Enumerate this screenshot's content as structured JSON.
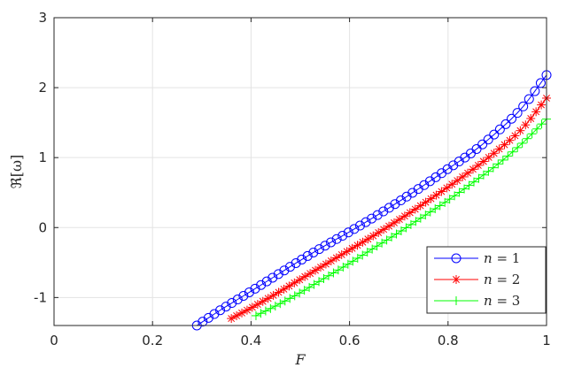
{
  "chart_data": {
    "type": "line",
    "xlabel": "F",
    "ylabel": "ℜ[ω]",
    "xlim": [
      0,
      1
    ],
    "ylim": [
      -1.4,
      3
    ],
    "xticks": [
      0,
      0.2,
      0.4,
      0.6,
      0.8,
      1
    ],
    "xtick_labels": [
      "0",
      "0.2",
      "0.4",
      "0.6",
      "0.8",
      "1"
    ],
    "yticks": [
      -1,
      0,
      1,
      2,
      3
    ],
    "ytick_labels": [
      "-1",
      "0",
      "1",
      "2",
      "3"
    ],
    "grid": true,
    "legend_position": "bottom-right",
    "series": [
      {
        "legend_var": "n",
        "legend_op": " = ",
        "legend_val": "1",
        "color": "#0000ff",
        "marker": "circle",
        "x": [
          0.29,
          0.34,
          0.4,
          0.45,
          0.5,
          0.55,
          0.6,
          0.65,
          0.7,
          0.75,
          0.8,
          0.85,
          0.9,
          0.95,
          1.0
        ],
        "y": [
          -1.4,
          -1.17,
          -0.91,
          -0.69,
          -0.47,
          -0.26,
          -0.06,
          0.15,
          0.37,
          0.6,
          0.84,
          1.08,
          1.37,
          1.71,
          2.18
        ]
      },
      {
        "legend_var": "n",
        "legend_op": " = ",
        "legend_val": "2",
        "color": "#ff0000",
        "marker": "asterisk",
        "x": [
          0.36,
          0.4,
          0.45,
          0.5,
          0.55,
          0.6,
          0.65,
          0.7,
          0.75,
          0.8,
          0.85,
          0.9,
          0.95,
          1.0
        ],
        "y": [
          -1.3,
          -1.15,
          -0.95,
          -0.74,
          -0.53,
          -0.32,
          -0.11,
          0.11,
          0.34,
          0.58,
          0.83,
          1.1,
          1.41,
          1.85
        ]
      },
      {
        "legend_var": "n",
        "legend_op": " = ",
        "legend_val": "3",
        "color": "#00ff00",
        "marker": "plus",
        "x": [
          0.41,
          0.45,
          0.5,
          0.55,
          0.6,
          0.65,
          0.7,
          0.75,
          0.8,
          0.85,
          0.9,
          0.95,
          1.0
        ],
        "y": [
          -1.26,
          -1.12,
          -0.93,
          -0.72,
          -0.51,
          -0.29,
          -0.07,
          0.16,
          0.39,
          0.64,
          0.9,
          1.2,
          1.55
        ]
      }
    ]
  }
}
